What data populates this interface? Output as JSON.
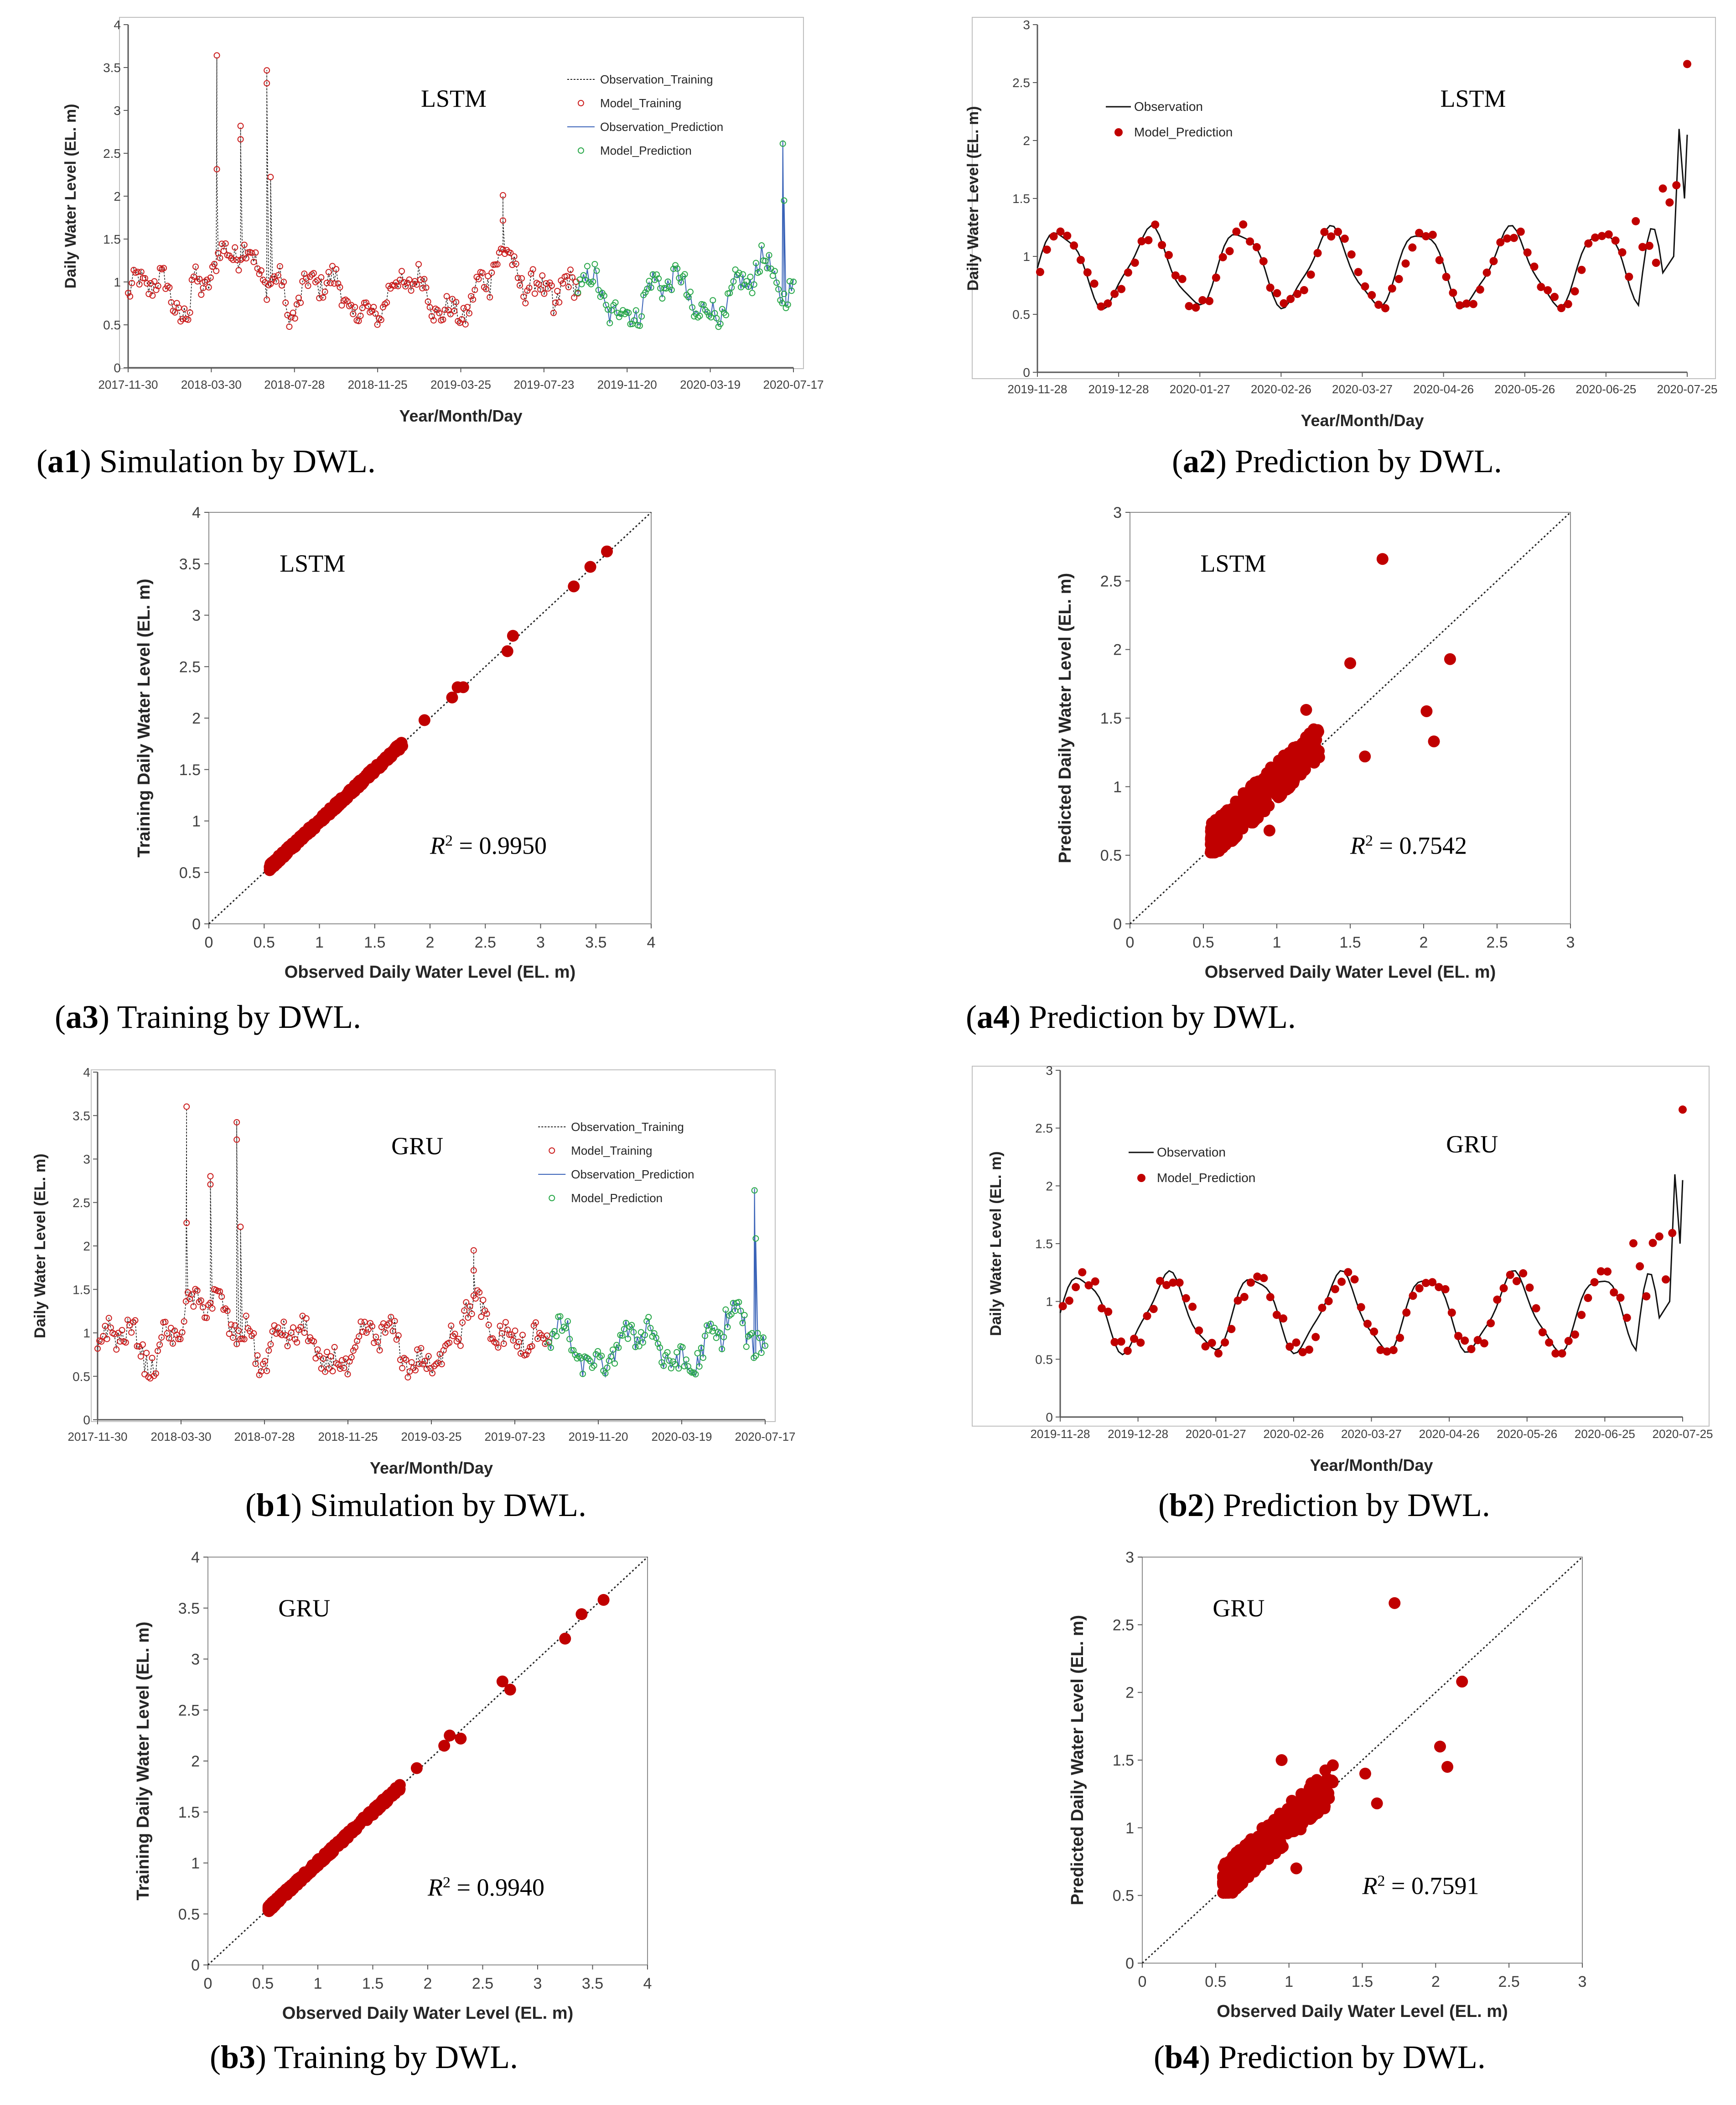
{
  "figure": {
    "panels": [
      {
        "id": "a1",
        "prefix": "a1",
        "caption_text": " Simulation by DWL."
      },
      {
        "id": "a2",
        "prefix": "a2",
        "caption_text": " Prediction by DWL."
      },
      {
        "id": "a3",
        "prefix": "a3",
        "caption_text": " Training by DWL."
      },
      {
        "id": "a4",
        "prefix": "a4",
        "caption_text": " Prediction by DWL."
      },
      {
        "id": "b1",
        "prefix": "b1",
        "caption_text": " Simulation by DWL."
      },
      {
        "id": "b2",
        "prefix": "b2",
        "caption_text": " Prediction by DWL."
      },
      {
        "id": "b3",
        "prefix": "b3",
        "caption_text": " Training by DWL."
      },
      {
        "id": "b4",
        "prefix": "b4",
        "caption_text": " Prediction by DWL."
      }
    ]
  },
  "colors": {
    "train_marker": "#cc1f1f",
    "pred_marker": "#2aa84a",
    "obs_pred_line": "#3a63b8",
    "scatter_fill": "#c00000",
    "axis": "#595959"
  },
  "chart_data": [
    {
      "id": "a1",
      "type": "line",
      "model_label": "LSTM",
      "xlabel": "Year/Month/Day",
      "ylabel": "Daily Water Level (EL. m)",
      "xticks": [
        "2017-11-30",
        "2018-03-30",
        "2018-07-28",
        "2018-11-25",
        "2019-03-25",
        "2019-07-23",
        "2019-11-20",
        "2020-03-19",
        "2020-07-17"
      ],
      "yticks": [
        "0",
        "0.5",
        "1",
        "1.5",
        "2",
        "2.5",
        "3",
        "3.5",
        "4"
      ],
      "ylim": [
        0,
        4
      ],
      "xlim_days": [
        0,
        1065
      ],
      "train_end_day": 720,
      "legend": [
        "Observation_Training",
        "Model_Training",
        "Observation_Prediction",
        "Model_Prediction"
      ],
      "peaks": [
        [
          142,
          3.62
        ],
        [
          142,
          2.3
        ],
        [
          180,
          2.8
        ],
        [
          180,
          2.65
        ],
        [
          222,
          3.47
        ],
        [
          222,
          3.3
        ],
        [
          228,
          2.2
        ],
        [
          600,
          2.0
        ],
        [
          600,
          1.73
        ],
        [
          1048,
          2.65
        ],
        [
          1050,
          1.95
        ]
      ]
    },
    {
      "id": "a2",
      "type": "line",
      "model_label": "LSTM",
      "xlabel": "Year/Month/Day",
      "ylabel": "Daily Water Level (EL. m)",
      "xticks": [
        "2019-11-28",
        "2019-12-28",
        "2020-01-27",
        "2020-02-26",
        "2020-03-27",
        "2020-04-26",
        "2020-05-26",
        "2020-06-25",
        "2020-07-25"
      ],
      "yticks": [
        "0",
        "0.5",
        "1",
        "1.5",
        "2",
        "2.5",
        "3"
      ],
      "ylim": [
        0,
        3
      ],
      "xlim_days": [
        0,
        240
      ],
      "legend": [
        "Observation",
        "Model_Prediction"
      ],
      "outlier": [
        240,
        2.66
      ]
    },
    {
      "id": "a3",
      "type": "scatter",
      "model_label": "LSTM",
      "xlabel": "Observed Daily Water Level (EL. m)",
      "ylabel": "Training Daily Water Level (EL. m)",
      "ticks": [
        "0",
        "0.5",
        "1",
        "1.5",
        "2",
        "2.5",
        "3",
        "3.5",
        "4"
      ],
      "lim": [
        0,
        4
      ],
      "r2_label": "R",
      "r2_sup": "2",
      "r2_text": " = 0.9950",
      "outliers": [
        [
          2.2,
          2.2
        ],
        [
          2.25,
          2.3
        ],
        [
          2.3,
          2.3
        ],
        [
          2.7,
          2.65
        ],
        [
          2.75,
          2.8
        ],
        [
          3.3,
          3.28
        ],
        [
          3.45,
          3.47
        ],
        [
          3.6,
          3.62
        ],
        [
          1.95,
          1.98
        ]
      ]
    },
    {
      "id": "a4",
      "type": "scatter",
      "model_label": "LSTM",
      "xlabel": "Observed Daily Water Level (EL. m)",
      "ylabel": "Predicted Daily Water Level (EL. m)",
      "ticks": [
        "0",
        "0.5",
        "1",
        "1.5",
        "2",
        "2.5",
        "3"
      ],
      "lim": [
        0,
        3
      ],
      "r2_label": "R",
      "r2_sup": "2",
      "r2_text": " = 0.7542",
      "outliers": [
        [
          1.72,
          2.66
        ],
        [
          1.5,
          1.9
        ],
        [
          2.18,
          1.93
        ],
        [
          2.02,
          1.55
        ],
        [
          2.07,
          1.33
        ],
        [
          1.6,
          1.22
        ],
        [
          1.2,
          1.56
        ],
        [
          0.95,
          0.68
        ]
      ]
    },
    {
      "id": "b1",
      "type": "line",
      "model_label": "GRU",
      "xlabel": "Year/Month/Day",
      "ylabel": "Daily Water Level (EL. m)",
      "xticks": [
        "2017-11-30",
        "2018-03-30",
        "2018-07-28",
        "2018-11-25",
        "2019-03-25",
        "2019-07-23",
        "2019-11-20",
        "2020-03-19",
        "2020-07-17"
      ],
      "yticks": [
        "0",
        "0.5",
        "1",
        "1.5",
        "2",
        "2.5",
        "3",
        "3.5",
        "4"
      ],
      "ylim": [
        0,
        4
      ],
      "xlim_days": [
        0,
        1065
      ],
      "train_end_day": 720,
      "legend": [
        "Observation_Training",
        "Model_Training",
        "Observation_Prediction",
        "Model_Prediction"
      ],
      "peaks": [
        [
          142,
          3.58
        ],
        [
          142,
          2.25
        ],
        [
          180,
          2.78
        ],
        [
          180,
          2.7
        ],
        [
          222,
          3.44
        ],
        [
          222,
          3.2
        ],
        [
          228,
          2.2
        ],
        [
          600,
          1.95
        ],
        [
          600,
          1.7
        ],
        [
          1048,
          2.66
        ],
        [
          1050,
          2.05
        ]
      ]
    },
    {
      "id": "b2",
      "type": "line",
      "model_label": "GRU",
      "xlabel": "Year/Month/Day",
      "ylabel": "Daily Water Level (EL. m)",
      "xticks": [
        "2019-11-28",
        "2019-12-28",
        "2020-01-27",
        "2020-02-26",
        "2020-03-27",
        "2020-04-26",
        "2020-05-26",
        "2020-06-25",
        "2020-07-25"
      ],
      "yticks": [
        "0",
        "0.5",
        "1",
        "1.5",
        "2",
        "2.5",
        "3"
      ],
      "ylim": [
        0,
        3
      ],
      "xlim_days": [
        0,
        240
      ],
      "legend": [
        "Observation",
        "Model_Prediction"
      ],
      "outlier": [
        240,
        2.66
      ]
    },
    {
      "id": "b3",
      "type": "scatter",
      "model_label": "GRU",
      "xlabel": "Observed Daily Water Level (EL. m)",
      "ylabel": "Training Daily Water Level (EL. m)",
      "ticks": [
        "0",
        "0.5",
        "1",
        "1.5",
        "2",
        "2.5",
        "3",
        "3.5",
        "4"
      ],
      "lim": [
        0,
        4
      ],
      "r2_label": "R",
      "r2_sup": "2",
      "r2_text": " = 0.9940",
      "outliers": [
        [
          2.15,
          2.15
        ],
        [
          2.2,
          2.25
        ],
        [
          2.3,
          2.22
        ],
        [
          2.68,
          2.78
        ],
        [
          2.75,
          2.7
        ],
        [
          3.25,
          3.2
        ],
        [
          3.4,
          3.44
        ],
        [
          3.6,
          3.58
        ],
        [
          1.9,
          1.93
        ]
      ]
    },
    {
      "id": "b4",
      "type": "scatter",
      "model_label": "GRU",
      "xlabel": "Observed Daily Water Level (EL. m)",
      "ylabel": "Predicted Daily Water Level (EL. m)",
      "ticks": [
        "0",
        "0.5",
        "1",
        "1.5",
        "2",
        "2.5",
        "3"
      ],
      "lim": [
        0,
        3
      ],
      "r2_label": "R",
      "r2_sup": "2",
      "r2_text": " = 0.7591",
      "outliers": [
        [
          1.72,
          2.66
        ],
        [
          2.18,
          2.08
        ],
        [
          2.03,
          1.6
        ],
        [
          2.08,
          1.45
        ],
        [
          1.6,
          1.18
        ],
        [
          1.52,
          1.4
        ],
        [
          0.95,
          1.5
        ],
        [
          1.05,
          0.7
        ]
      ]
    }
  ]
}
